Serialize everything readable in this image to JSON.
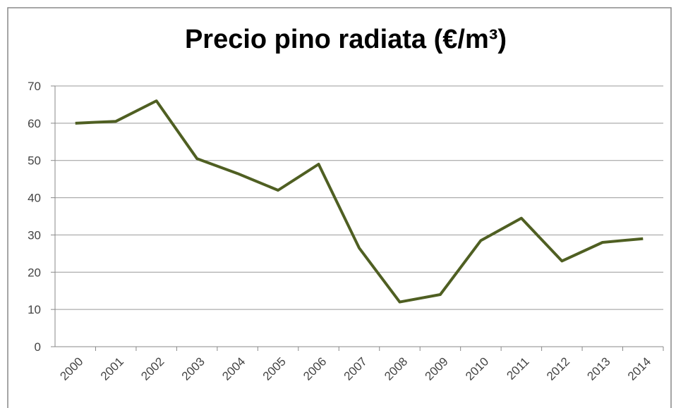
{
  "chart_data": {
    "type": "line",
    "title": "Precio pino radiata (€/m³)",
    "categories": [
      "2000",
      "2001",
      "2002",
      "2003",
      "2004",
      "2005",
      "2006",
      "2007",
      "2008",
      "2009",
      "2010",
      "2011",
      "2012",
      "2013",
      "2014"
    ],
    "values": [
      60,
      60.5,
      66,
      50.5,
      46.5,
      42,
      49,
      26.5,
      12,
      14,
      28.5,
      34.5,
      23,
      28,
      29
    ],
    "color": "#4f5f22",
    "ylim": [
      0,
      70
    ],
    "yticks": [
      0,
      10,
      20,
      30,
      40,
      50,
      60,
      70
    ],
    "grid": true
  }
}
